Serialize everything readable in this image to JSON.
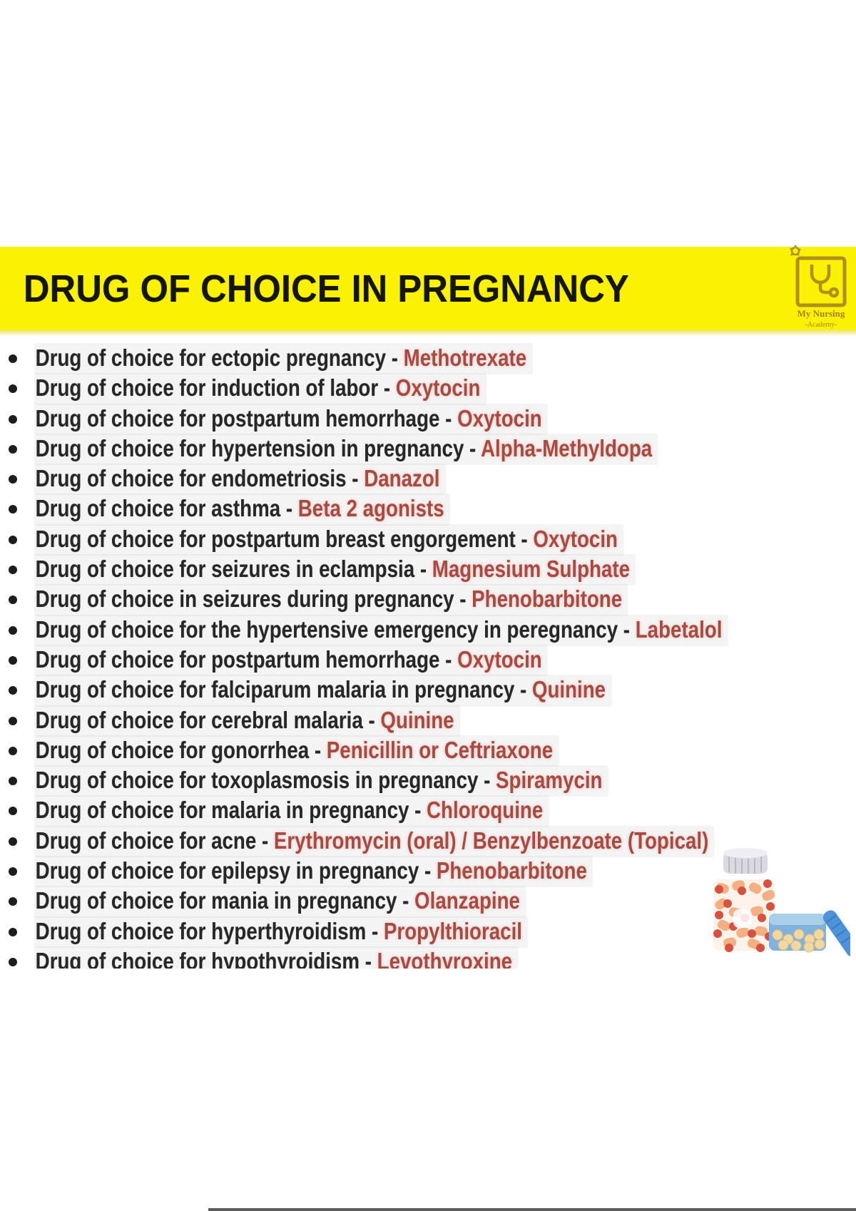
{
  "banner": {
    "title": "DRUG OF CHOICE IN PREGNANCY",
    "background_color": "#fbf203",
    "title_color": "#161607"
  },
  "logo": {
    "name": "My Nursing",
    "subname": "-Academy-",
    "icon": "stethoscope-icon",
    "color": "#a8861e"
  },
  "colors": {
    "drug_name": "#a64a42",
    "body_text": "#272727",
    "bullet": "#1d1d1d"
  },
  "list": {
    "separator": " - ",
    "items": [
      {
        "condition": "Drug of choice for ectopic pregnancy",
        "drug": "Methotrexate"
      },
      {
        "condition": "Drug of choice for induction of labor",
        "drug": "Oxytocin"
      },
      {
        "condition": "Drug of choice for postpartum hemorrhage",
        "drug": "Oxytocin"
      },
      {
        "condition": "Drug of choice for hypertension in pregnancy",
        "drug": "Alpha-Methyldopa"
      },
      {
        "condition": "Drug of choice for endometriosis",
        "drug": "Danazol"
      },
      {
        "condition": "Drug of choice for asthma",
        "drug": "Beta 2 agonists"
      },
      {
        "condition": "Drug of choice for postpartum breast engorgement",
        "drug": "Oxytocin"
      },
      {
        "condition": "Drug of choice for seizures in eclampsia",
        "drug": "Magnesium Sulphate"
      },
      {
        "condition": "Drug of choice in seizures during pregnancy",
        "drug": "Phenobarbitone"
      },
      {
        "condition": "Drug of choice for the hypertensive emergency in peregnancy",
        "drug": "Labetalol"
      },
      {
        "condition": "Drug of choice for postpartum hemorrhage",
        "drug": "Oxytocin"
      },
      {
        "condition": "Drug of choice for falciparum malaria in pregnancy",
        "drug": "Quinine"
      },
      {
        "condition": "Drug of choice for cerebral malaria",
        "drug": "Quinine"
      },
      {
        "condition": "Drug of choice for gonorrhea",
        "drug": "Penicillin or Ceftriaxone"
      },
      {
        "condition": "Drug of choice for toxoplasmosis in pregnancy",
        "drug": "Spiramycin"
      },
      {
        "condition": "Drug of choice for malaria in pregnancy",
        "drug": "Chloroquine"
      },
      {
        "condition": "Drug of choice for acne",
        "drug": "Erythromycin (oral) / Benzylbenzoate (Topical)"
      },
      {
        "condition": "Drug of choice for epilepsy in pregnancy",
        "drug": "Phenobarbitone"
      },
      {
        "condition": "Drug of choice for mania in pregnancy",
        "drug": "Olanzapine"
      },
      {
        "condition": "Drug of choice for hyperthyroidism",
        "drug": "Propylthioracil"
      },
      {
        "condition": "Drug of choice for hypothyroidism",
        "drug": "Levothyroxine"
      }
    ]
  },
  "illustration": {
    "items": [
      "capsule-bottle-icon",
      "bottle-cap-icon",
      "pill-jar-icon",
      "jar-lid-icon"
    ]
  }
}
